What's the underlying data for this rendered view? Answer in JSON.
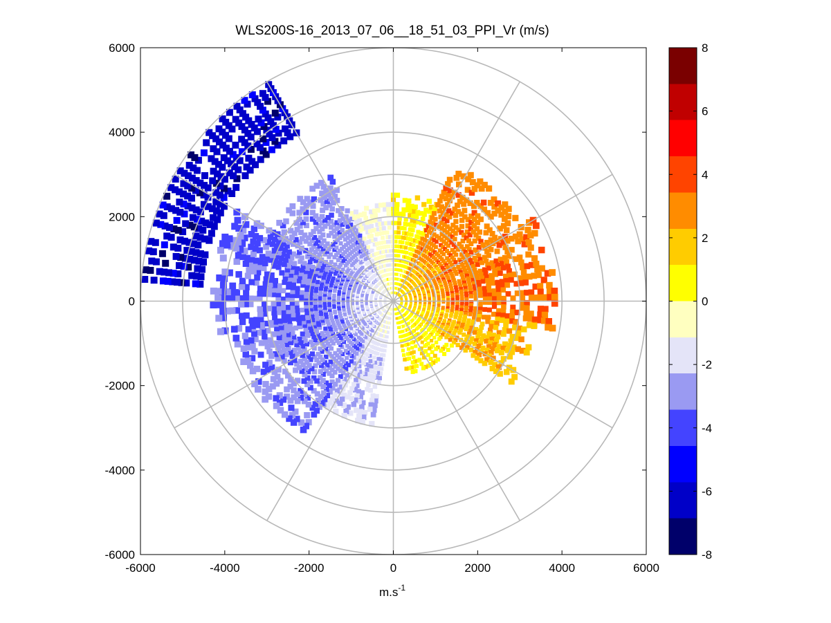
{
  "chart_data": {
    "type": "heatmap",
    "subtype": "polar-ppi-scan",
    "title": "WLS200S-16_2013_07_06__18_51_03_PPI_Vr (m/s)",
    "xlabel": "m.s",
    "xlabel_superscript": "-1",
    "ylabel": "",
    "xlim": [
      -6000,
      6000
    ],
    "ylim": [
      -6000,
      6000
    ],
    "x_ticks": [
      -6000,
      -4000,
      -2000,
      0,
      2000,
      4000,
      6000
    ],
    "y_ticks": [
      -6000,
      -4000,
      -2000,
      0,
      2000,
      4000,
      6000
    ],
    "x_tick_labels": [
      "-6000",
      "-4000",
      "-2000",
      "0",
      "2000",
      "4000",
      "6000"
    ],
    "y_tick_labels": [
      "-6000",
      "-4000",
      "-2000",
      "0",
      "2000",
      "4000",
      "6000"
    ],
    "polar_grid": {
      "range_rings": [
        1000,
        2000,
        3000,
        4000,
        5000,
        6000
      ],
      "spokes_deg": [
        0,
        30,
        60,
        90,
        120,
        150,
        180,
        210,
        240,
        270,
        300,
        330
      ]
    },
    "colorbar": {
      "min": -8,
      "max": 8,
      "ticks": [
        8,
        6,
        4,
        2,
        0,
        -2,
        -4,
        -6,
        -8
      ],
      "tick_labels": [
        "8",
        "6",
        "4",
        "2",
        "0",
        "-2",
        "-4",
        "-6",
        "-8"
      ],
      "colormap": [
        "#00006a",
        "#0000c8",
        "#0000ff",
        "#4444ff",
        "#9a9af2",
        "#e4e4f8",
        "#ffffc0",
        "#ffff00",
        "#ffcc00",
        "#ff8c00",
        "#ff4400",
        "#ff0000",
        "#c00000",
        "#7a0000"
      ]
    },
    "radial_velocity_sectors": [
      {
        "azimuth_from": 0,
        "azimuth_to": 25,
        "range_max": 2600,
        "velocity": 0.8
      },
      {
        "azimuth_from": 25,
        "azimuth_to": 60,
        "range_max": 3600,
        "velocity": 3.0
      },
      {
        "azimuth_from": 60,
        "azimuth_to": 100,
        "range_max": 3900,
        "velocity": 3.2
      },
      {
        "azimuth_from": 100,
        "azimuth_to": 125,
        "range_max": 3400,
        "velocity": 2.0
      },
      {
        "azimuth_from": 125,
        "azimuth_to": 170,
        "range_max": 1800,
        "velocity": 0.9
      },
      {
        "azimuth_from": 190,
        "azimuth_to": 215,
        "range_max": 3000,
        "velocity": -2.0
      },
      {
        "azimuth_from": 215,
        "azimuth_to": 260,
        "range_max": 3900,
        "velocity": -3.2
      },
      {
        "azimuth_from": 260,
        "azimuth_to": 300,
        "range_max": 4300,
        "velocity": -3.6
      },
      {
        "azimuth_from": 300,
        "azimuth_to": 335,
        "range_max": 3300,
        "velocity": -3.0
      },
      {
        "azimuth_from": 335,
        "azimuth_to": 360,
        "range_max": 2300,
        "velocity": -1.0
      },
      {
        "azimuth_from": 275,
        "azimuth_to": 330,
        "range_min": 4600,
        "range_max": 6000,
        "velocity": -6.3
      }
    ]
  }
}
